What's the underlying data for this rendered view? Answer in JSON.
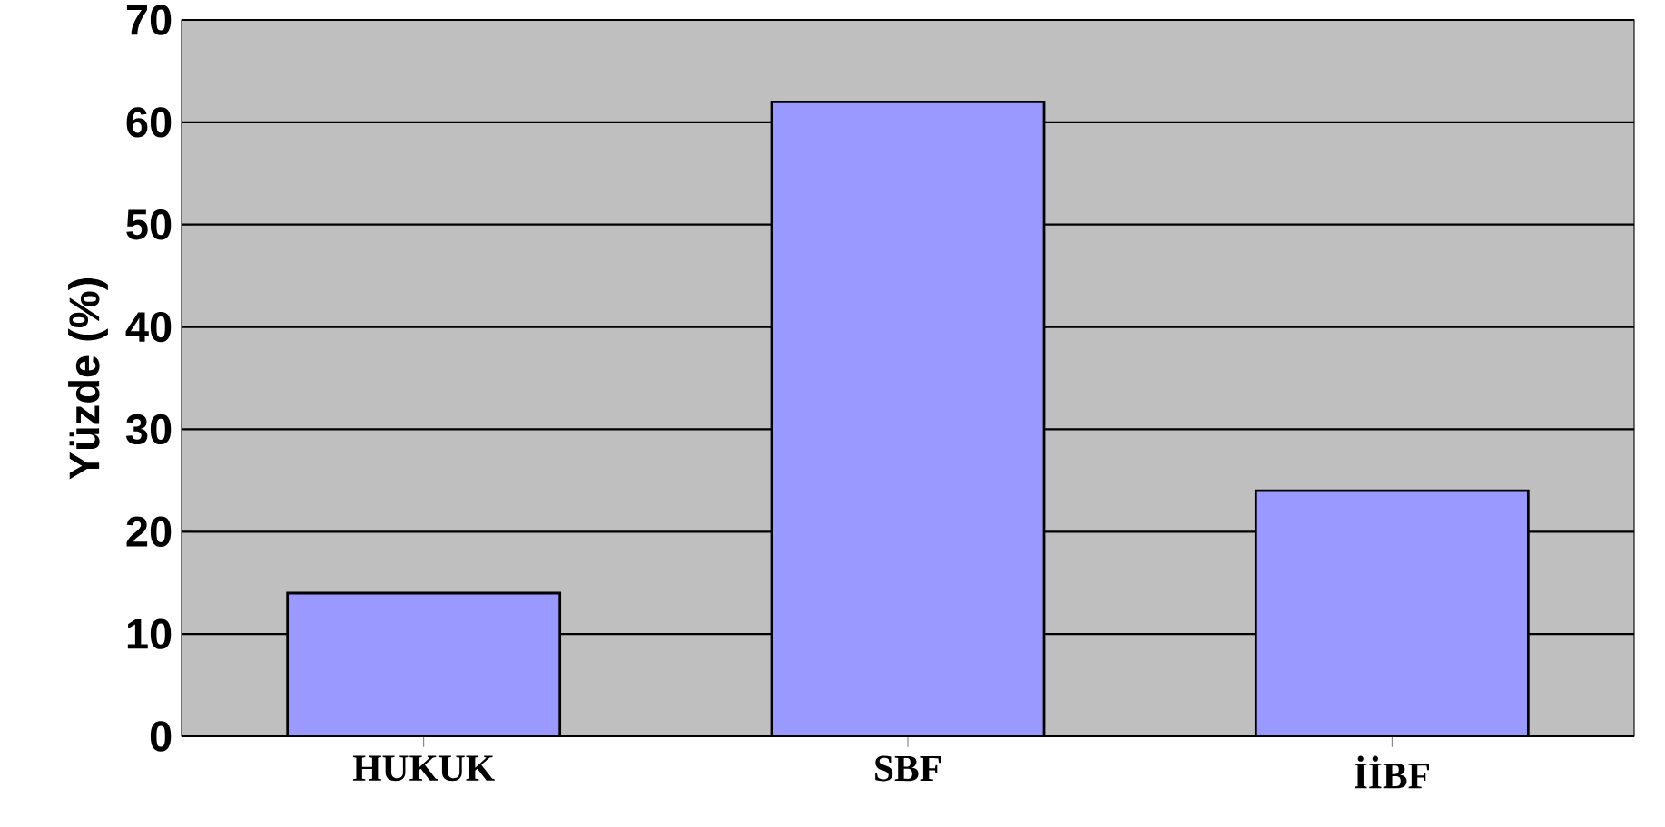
{
  "chart_data": {
    "type": "bar",
    "ylabel": "Yüzde (%)",
    "categories": [
      "HUKUK",
      "SBF",
      "İİBF"
    ],
    "values": [
      14,
      62,
      24
    ],
    "color": "#9999ff",
    "ylim": [
      0,
      70
    ],
    "yticks": [
      0,
      10,
      20,
      30,
      40,
      50,
      60,
      70
    ],
    "grid": "y"
  }
}
